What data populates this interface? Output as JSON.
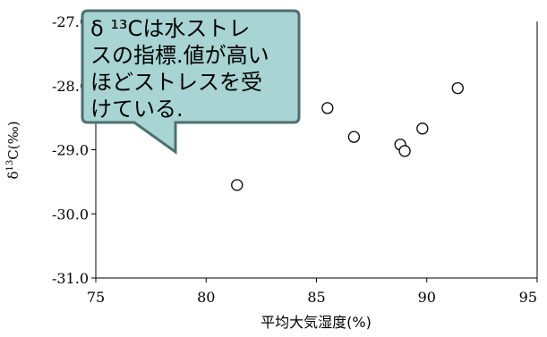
{
  "chart_data": {
    "type": "scatter",
    "xlabel": "平均大気湿度(%)",
    "ylabel": "δ13C(‰)",
    "xlim": [
      75,
      95
    ],
    "ylim": [
      -31.0,
      -27.0
    ],
    "x_ticks": [
      "75",
      "80",
      "85",
      "90",
      "95"
    ],
    "y_ticks": [
      "-27.0",
      "-28.0",
      "-29.0",
      "-30.0",
      "-31.0"
    ],
    "grid": false,
    "points": [
      {
        "x": 81.4,
        "y": -29.55
      },
      {
        "x": 85.5,
        "y": -28.35
      },
      {
        "x": 86.7,
        "y": -28.8
      },
      {
        "x": 88.8,
        "y": -28.92
      },
      {
        "x": 89.0,
        "y": -29.02
      },
      {
        "x": 89.8,
        "y": -28.67
      },
      {
        "x": 91.4,
        "y": -28.04
      }
    ],
    "annotations": [
      {
        "lines": [
          "δ ¹³Cは水ストレ",
          "スの指標.値が高い",
          "ほどストレスを受",
          "けている."
        ]
      }
    ],
    "colors": {
      "callout_fill": "#a8d4d4",
      "callout_stroke": "#4f6f6f",
      "marker_fill": "#ffffff",
      "marker_stroke": "#000000"
    }
  }
}
